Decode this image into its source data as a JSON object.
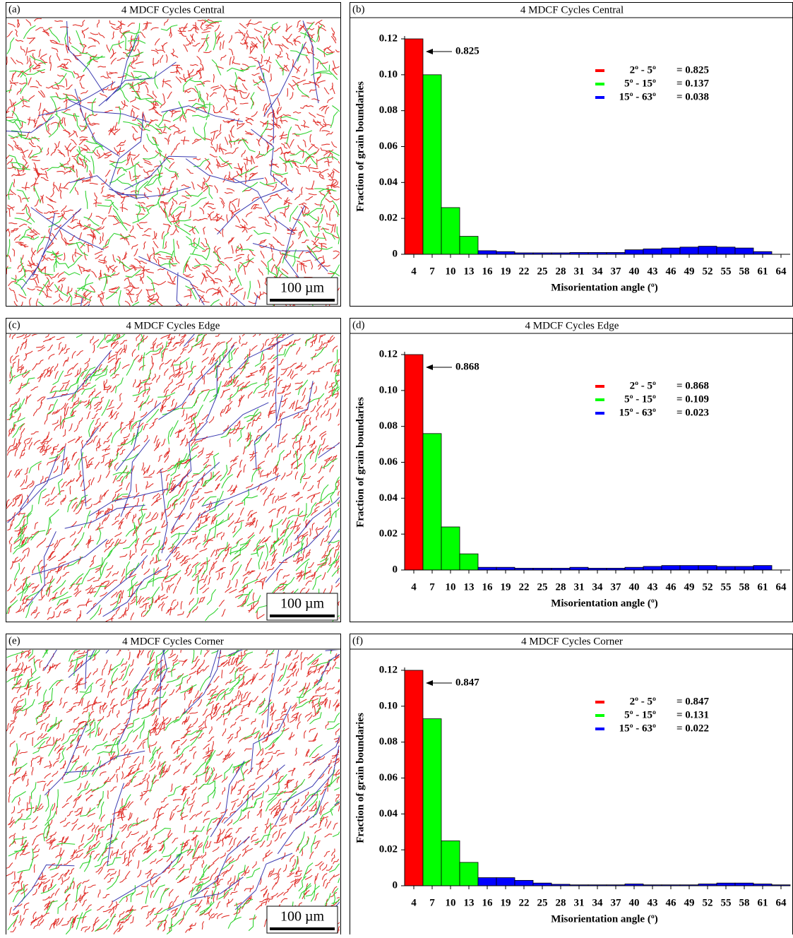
{
  "images": [
    {
      "label": "(a)",
      "title": "4 MDCF Cycles  Central",
      "scale_bar": "100 µm"
    },
    {
      "label": "(c)",
      "title": "4 MDCF Cycles  Edge",
      "scale_bar": "100 µm"
    },
    {
      "label": "(e)",
      "title": "4 MDCF Cycles  Corner",
      "scale_bar": "100 µm"
    }
  ],
  "chart_data": [
    {
      "type": "bar",
      "label": "(b)",
      "title": "4 MDCF Cycles  Central",
      "xlabel": "Misorientation angle (º)",
      "ylabel": "Fraction of grain boundaries",
      "categories": [
        "4",
        "7",
        "10",
        "13",
        "16",
        "19",
        "22",
        "25",
        "28",
        "31",
        "34",
        "37",
        "40",
        "43",
        "46",
        "49",
        "52",
        "55",
        "58",
        "61",
        "64"
      ],
      "values": [
        0.12,
        0.1,
        0.026,
        0.01,
        0.002,
        0.0015,
        0.0008,
        0.0008,
        0.0008,
        0.001,
        0.001,
        0.001,
        0.0025,
        0.003,
        0.0035,
        0.004,
        0.0045,
        0.004,
        0.0035,
        0.0015,
        0
      ],
      "colors": [
        "#ff0000",
        "#00ff00",
        "#00ff00",
        "#00ff00",
        "#0000ff",
        "#0000ff",
        "#0000ff",
        "#0000ff",
        "#0000ff",
        "#0000ff",
        "#0000ff",
        "#0000ff",
        "#0000ff",
        "#0000ff",
        "#0000ff",
        "#0000ff",
        "#0000ff",
        "#0000ff",
        "#0000ff",
        "#0000ff",
        "#0000ff"
      ],
      "ylim": [
        0,
        0.12
      ],
      "yticks": [
        0,
        0.02,
        0.04,
        0.06,
        {
          "value": 0.08,
          "label": "0.08"
        },
        {
          "value": 0.1,
          "label": "0.10"
        },
        0.12
      ],
      "annotation": "0.825",
      "legend": [
        {
          "name": "2º - 5º",
          "color": "#ff0000",
          "label": "= 0.825"
        },
        {
          "name": "5º - 15º",
          "color": "#00ff00",
          "label": "= 0.137"
        },
        {
          "name": "15º - 63º",
          "color": "#0000ff",
          "label": "= 0.038"
        }
      ]
    },
    {
      "type": "bar",
      "label": "(d)",
      "title": "4 MDCF Cycles  Edge",
      "xlabel": "Misorientation angle (º)",
      "ylabel": "Fraction of grain boundaries",
      "categories": [
        "4",
        "7",
        "10",
        "13",
        "16",
        "19",
        "22",
        "25",
        "28",
        "31",
        "34",
        "37",
        "40",
        "43",
        "46",
        "49",
        "52",
        "55",
        "58",
        "61",
        "64"
      ],
      "values": [
        0.12,
        0.076,
        0.024,
        0.009,
        0.0015,
        0.0015,
        0.001,
        0.001,
        0.001,
        0.0015,
        0.001,
        0.001,
        0.0015,
        0.002,
        0.0025,
        0.0025,
        0.0025,
        0.002,
        0.002,
        0.0025,
        0
      ],
      "colors": [
        "#ff0000",
        "#00ff00",
        "#00ff00",
        "#00ff00",
        "#0000ff",
        "#0000ff",
        "#0000ff",
        "#0000ff",
        "#0000ff",
        "#0000ff",
        "#0000ff",
        "#0000ff",
        "#0000ff",
        "#0000ff",
        "#0000ff",
        "#0000ff",
        "#0000ff",
        "#0000ff",
        "#0000ff",
        "#0000ff",
        "#0000ff"
      ],
      "ylim": [
        0,
        0.12
      ],
      "yticks": [
        0,
        0.02,
        0.04,
        0.06,
        {
          "value": 0.08,
          "label": "0.08"
        },
        {
          "value": 0.1,
          "label": "0.10"
        },
        0.12
      ],
      "annotation": "0.868",
      "legend": [
        {
          "name": "2º - 5º",
          "color": "#ff0000",
          "label": "= 0.868"
        },
        {
          "name": "5º - 15º",
          "color": "#00ff00",
          "label": "= 0.109"
        },
        {
          "name": "15º - 63º",
          "color": "#0000ff",
          "label": "= 0.023"
        }
      ]
    },
    {
      "type": "bar",
      "label": "(f)",
      "title": "4 MDCF Cycles  Corner",
      "xlabel": "Misorientation angle (º)",
      "ylabel": "Fraction of grain boundaries",
      "categories": [
        "4",
        "7",
        "10",
        "13",
        "16",
        "19",
        "22",
        "25",
        "28",
        "31",
        "34",
        "37",
        "40",
        "43",
        "46",
        "49",
        "52",
        "55",
        "58",
        "61",
        "64"
      ],
      "values": [
        0.12,
        0.093,
        0.025,
        0.013,
        0.0045,
        0.0045,
        0.003,
        0.0015,
        0.0008,
        0.0005,
        0.0005,
        0.0005,
        0.001,
        0.0005,
        0.0005,
        0.0005,
        0.001,
        0.0015,
        0.0015,
        0.001,
        0.0005
      ],
      "colors": [
        "#ff0000",
        "#00ff00",
        "#00ff00",
        "#00ff00",
        "#0000ff",
        "#0000ff",
        "#0000ff",
        "#0000ff",
        "#0000ff",
        "#0000ff",
        "#0000ff",
        "#0000ff",
        "#0000ff",
        "#0000ff",
        "#0000ff",
        "#0000ff",
        "#0000ff",
        "#0000ff",
        "#0000ff",
        "#0000ff",
        "#0000ff"
      ],
      "ylim": [
        0,
        0.12
      ],
      "yticks": [
        0,
        0.02,
        0.04,
        0.06,
        {
          "value": 0.08,
          "label": "0.08"
        },
        {
          "value": 0.1,
          "label": "0.10"
        },
        0.12
      ],
      "annotation": "0.847",
      "legend": [
        {
          "name": "2º - 5º",
          "color": "#ff0000",
          "label": "= 0.847"
        },
        {
          "name": "5º - 15º",
          "color": "#00ff00",
          "label": "= 0.131"
        },
        {
          "name": "15º - 63º",
          "color": "#0000ff",
          "label": "= 0.022"
        }
      ]
    }
  ]
}
